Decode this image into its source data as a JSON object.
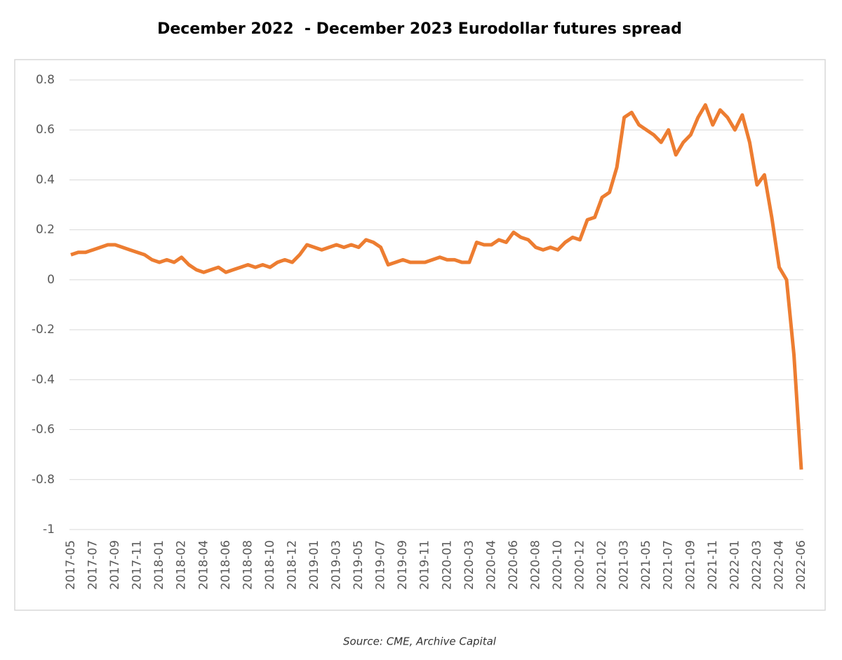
{
  "chart_data": {
    "type": "line",
    "title": "December 2022  - December 2023 Eurodollar futures spread",
    "source": "Source: CME, Archive Capital",
    "categories": [
      "2017-05",
      null,
      null,
      "2017-07",
      null,
      null,
      "2017-09",
      null,
      null,
      "2017-11",
      null,
      null,
      "2018-01",
      null,
      null,
      "2018-02",
      null,
      null,
      "2018-04",
      null,
      null,
      "2018-06",
      null,
      null,
      "2018-08",
      null,
      null,
      "2018-10",
      null,
      null,
      "2018-12",
      null,
      null,
      "2019-01",
      null,
      null,
      "2019-03",
      null,
      null,
      "2019-05",
      null,
      null,
      "2019-07",
      null,
      null,
      "2019-09",
      null,
      null,
      "2019-11",
      null,
      null,
      "2020-01",
      null,
      null,
      "2020-03",
      null,
      null,
      "2020-04",
      null,
      null,
      "2020-06",
      null,
      null,
      "2020-08",
      null,
      null,
      "2020-10",
      null,
      null,
      "2020-12",
      null,
      null,
      "2021-02",
      null,
      null,
      "2021-03",
      null,
      null,
      "2021-05",
      null,
      null,
      "2021-07",
      null,
      null,
      "2021-09",
      null,
      null,
      "2021-11",
      null,
      null,
      "2022-01",
      null,
      null,
      "2022-03",
      null,
      null,
      "2022-04",
      null,
      null,
      "2022-06"
    ],
    "values": [
      0.1,
      0.11,
      0.11,
      0.12,
      0.13,
      0.14,
      0.14,
      0.13,
      0.12,
      0.11,
      0.1,
      0.08,
      0.07,
      0.08,
      0.07,
      0.09,
      0.06,
      0.04,
      0.03,
      0.04,
      0.05,
      0.03,
      0.04,
      0.05,
      0.06,
      0.05,
      0.06,
      0.05,
      0.07,
      0.08,
      0.07,
      0.1,
      0.14,
      0.13,
      0.12,
      0.13,
      0.14,
      0.13,
      0.14,
      0.13,
      0.16,
      0.15,
      0.13,
      0.06,
      0.07,
      0.08,
      0.07,
      0.07,
      0.07,
      0.08,
      0.09,
      0.08,
      0.08,
      0.07,
      0.07,
      0.15,
      0.14,
      0.14,
      0.16,
      0.15,
      0.19,
      0.17,
      0.16,
      0.13,
      0.12,
      0.13,
      0.12,
      0.15,
      0.17,
      0.16,
      0.24,
      0.25,
      0.33,
      0.35,
      0.45,
      0.65,
      0.67,
      0.62,
      0.6,
      0.58,
      0.55,
      0.6,
      0.5,
      0.55,
      0.58,
      0.65,
      0.7,
      0.62,
      0.68,
      0.65,
      0.6,
      0.66,
      0.55,
      0.38,
      0.42,
      0.25,
      0.05,
      0.0,
      -0.3,
      -0.76
    ],
    "color": "#ed7d31",
    "ylim": [
      -1,
      0.8
    ],
    "yticks": [
      -1,
      -0.8,
      -0.6,
      -0.4,
      -0.2,
      0,
      0.2,
      0.4,
      0.6,
      0.8
    ],
    "grid": true
  }
}
